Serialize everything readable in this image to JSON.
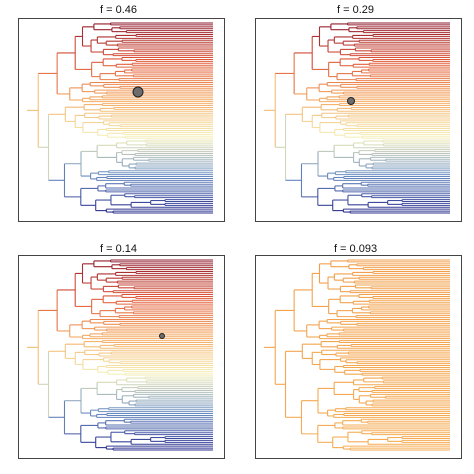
{
  "panels": [
    {
      "title": "f = 0.46",
      "node_marker": "large-circle"
    },
    {
      "title": "f = 0.29",
      "node_marker": "medium-circle"
    },
    {
      "title": "f = 0.14",
      "node_marker": "small-circle"
    },
    {
      "title": "f = 0.093",
      "node_marker": "none"
    }
  ],
  "chart_data": [
    {
      "type": "tree",
      "title": "f = 0.46",
      "leaf_count": 100,
      "xlabel": "",
      "ylabel": "",
      "color_scale": [
        "#2b2f8e",
        "#6b8ec2",
        "#f5f0b8",
        "#f4a860",
        "#e05a3c",
        "#8e1b2c"
      ],
      "marked_clade": "top clade highlighted dark red"
    },
    {
      "type": "tree",
      "title": "f = 0.29",
      "leaf_count": 100,
      "xlabel": "",
      "ylabel": "",
      "color_scale": [
        "#2b2f8e",
        "#6b8ec2",
        "#f5f0b8",
        "#f4a860",
        "#e05a3c",
        "#8e1b2c"
      ],
      "marked_clade": "upper clade highlighted red-orange"
    },
    {
      "type": "tree",
      "title": "f = 0.14",
      "leaf_count": 100,
      "xlabel": "",
      "ylabel": "",
      "color_scale": [
        "#2b2f8e",
        "#6b8ec2",
        "#f5f0b8",
        "#f4a860",
        "#e05a3c",
        "#8e1b2c"
      ],
      "marked_clade": "small top clade highlighted dark red"
    },
    {
      "type": "tree",
      "title": "f = 0.093",
      "leaf_count": 100,
      "xlabel": "",
      "ylabel": "",
      "color_scale": [
        "#f7b257",
        "#f09a4a"
      ],
      "marked_clade": "none"
    }
  ]
}
